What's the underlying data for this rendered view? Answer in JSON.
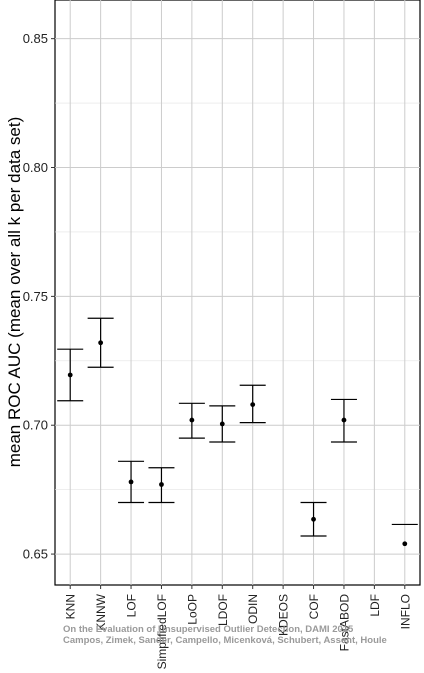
{
  "chart_data": {
    "type": "errorbar",
    "ylabel": "mean ROC AUC (mean over all k per data set)",
    "xlabel": "",
    "ylim": [
      0.638,
      0.865
    ],
    "yticks": [
      "0.65",
      "0.70",
      "0.75",
      "0.80",
      "0.85"
    ],
    "grid": true,
    "categories": [
      "KNN",
      "KNNW",
      "LOF",
      "SimplifiedLOF",
      "LoOP",
      "LDOF",
      "ODIN",
      "KDEOS",
      "COF",
      "FastABOD",
      "LDF",
      "INFLO"
    ],
    "series": [
      {
        "mean": [
          0.7195,
          0.732,
          0.678,
          0.677,
          0.702,
          0.7005,
          0.708,
          null,
          0.6635,
          0.702,
          null,
          0.654
        ],
        "lower": [
          0.7095,
          0.7225,
          0.67,
          0.67,
          0.695,
          0.6935,
          0.701,
          null,
          0.657,
          0.6935,
          null,
          null
        ],
        "upper": [
          0.7295,
          0.7415,
          0.686,
          0.6835,
          0.7085,
          0.7075,
          0.7155,
          null,
          0.67,
          0.71,
          null,
          0.6615
        ]
      }
    ],
    "watermark": [
      "On the Evaluation of Unsupervised Outlier Detection, DAMI 2015",
      "Campos, Zimek, Sander, Campello, Micenková, Schubert, Assent, Houle"
    ]
  }
}
